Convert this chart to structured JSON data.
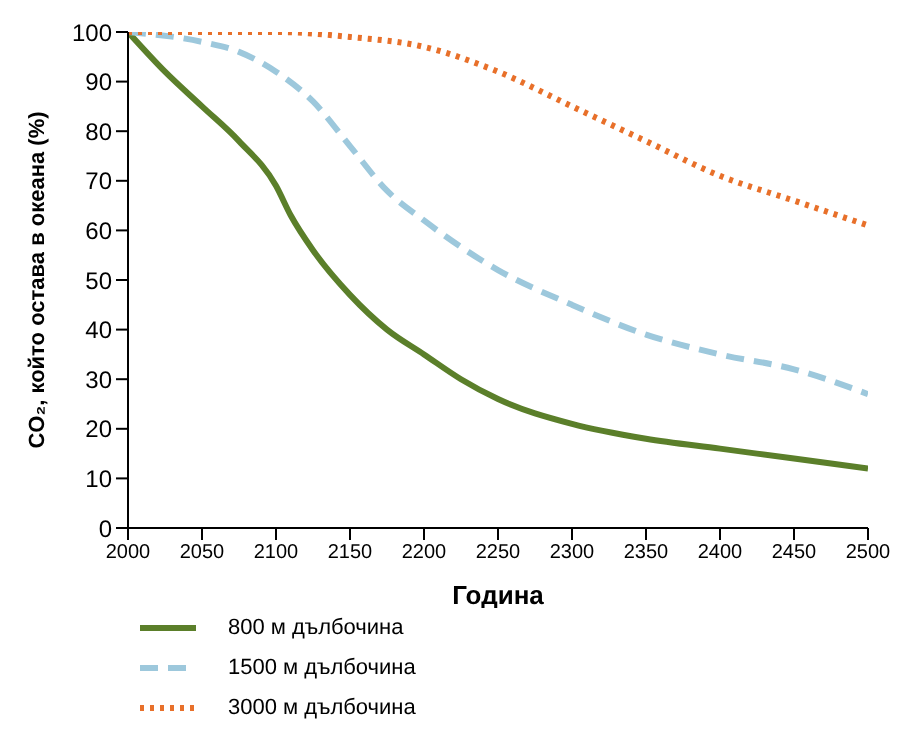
{
  "chart_data": {
    "type": "line",
    "xlabel": "Година",
    "ylabel": "CO₂, който остава в океана (%)",
    "xlim": [
      2000,
      2500
    ],
    "xticks": [
      2000,
      2050,
      2100,
      2150,
      2200,
      2250,
      2300,
      2350,
      2400,
      2450,
      2500
    ],
    "ylim": [
      0,
      100
    ],
    "yticks": [
      0,
      10,
      20,
      30,
      40,
      50,
      60,
      70,
      80,
      90,
      100
    ],
    "grid": false,
    "legend": "bottom",
    "marker": "none",
    "series": [
      {
        "name": "800 м дълбочина",
        "color": "#5b7f2a",
        "line_style": "solid",
        "x": [
          2000,
          2025,
          2050,
          2075,
          2100,
          2110,
          2125,
          2150,
          2175,
          2200,
          2225,
          2250,
          2300,
          2350,
          2400,
          2450,
          2500
        ],
        "values": [
          100,
          92,
          85,
          78,
          69,
          63,
          56,
          47,
          40,
          35,
          30,
          26,
          21,
          18,
          16,
          14,
          12
        ]
      },
      {
        "name": "1500 м дълбочина",
        "color": "#9dc8dc",
        "line_style": "dashed",
        "x": [
          2000,
          2050,
          2075,
          2100,
          2125,
          2150,
          2175,
          2200,
          2250,
          2300,
          2350,
          2400,
          2450,
          2500
        ],
        "values": [
          100,
          98,
          96,
          92,
          86,
          77,
          68,
          62,
          52,
          45,
          39,
          35,
          32,
          27
        ]
      },
      {
        "name": "3000 м дълбочина",
        "color": "#e8702a",
        "line_style": "dotted",
        "x": [
          2000,
          2100,
          2150,
          2200,
          2250,
          2300,
          2350,
          2400,
          2450,
          2500
        ],
        "values": [
          100,
          100,
          99,
          97,
          92,
          85,
          78,
          71,
          66,
          61
        ]
      }
    ]
  }
}
